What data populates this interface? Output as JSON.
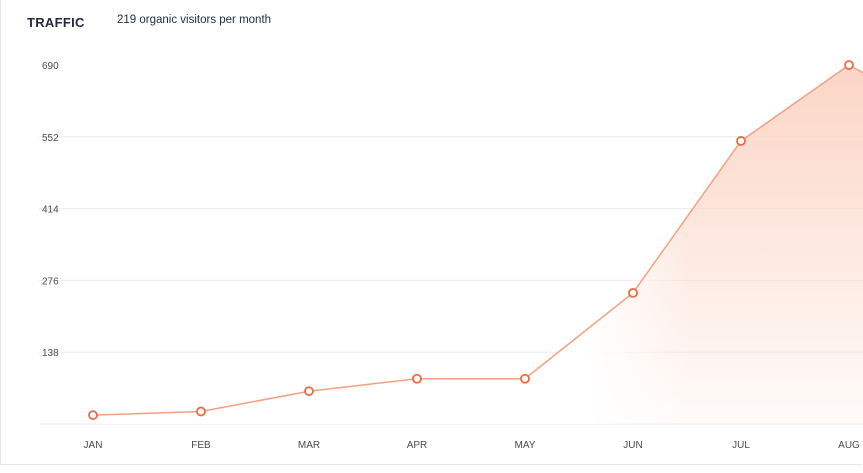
{
  "header": {
    "title": "TRAFFIC",
    "subtitle": "219 organic visitors per month"
  },
  "colors": {
    "line": "#f4a080",
    "marker_stroke": "#ee6a3f",
    "area_top": "#fbd3c2",
    "grid": "#ececec"
  },
  "chart_data": {
    "type": "area",
    "title": "TRAFFIC",
    "subtitle": "219 organic visitors per month",
    "categories": [
      "JAN",
      "FEB",
      "MAR",
      "APR",
      "MAY",
      "JUN",
      "JUL",
      "AUG"
    ],
    "series": [
      {
        "values": [
          17,
          24,
          63,
          87,
          87,
          252,
          544,
          690
        ]
      }
    ],
    "yticks": [
      138,
      276,
      414,
      552,
      690
    ],
    "ylim": [
      0,
      690
    ],
    "grid": true,
    "legend": "none"
  }
}
